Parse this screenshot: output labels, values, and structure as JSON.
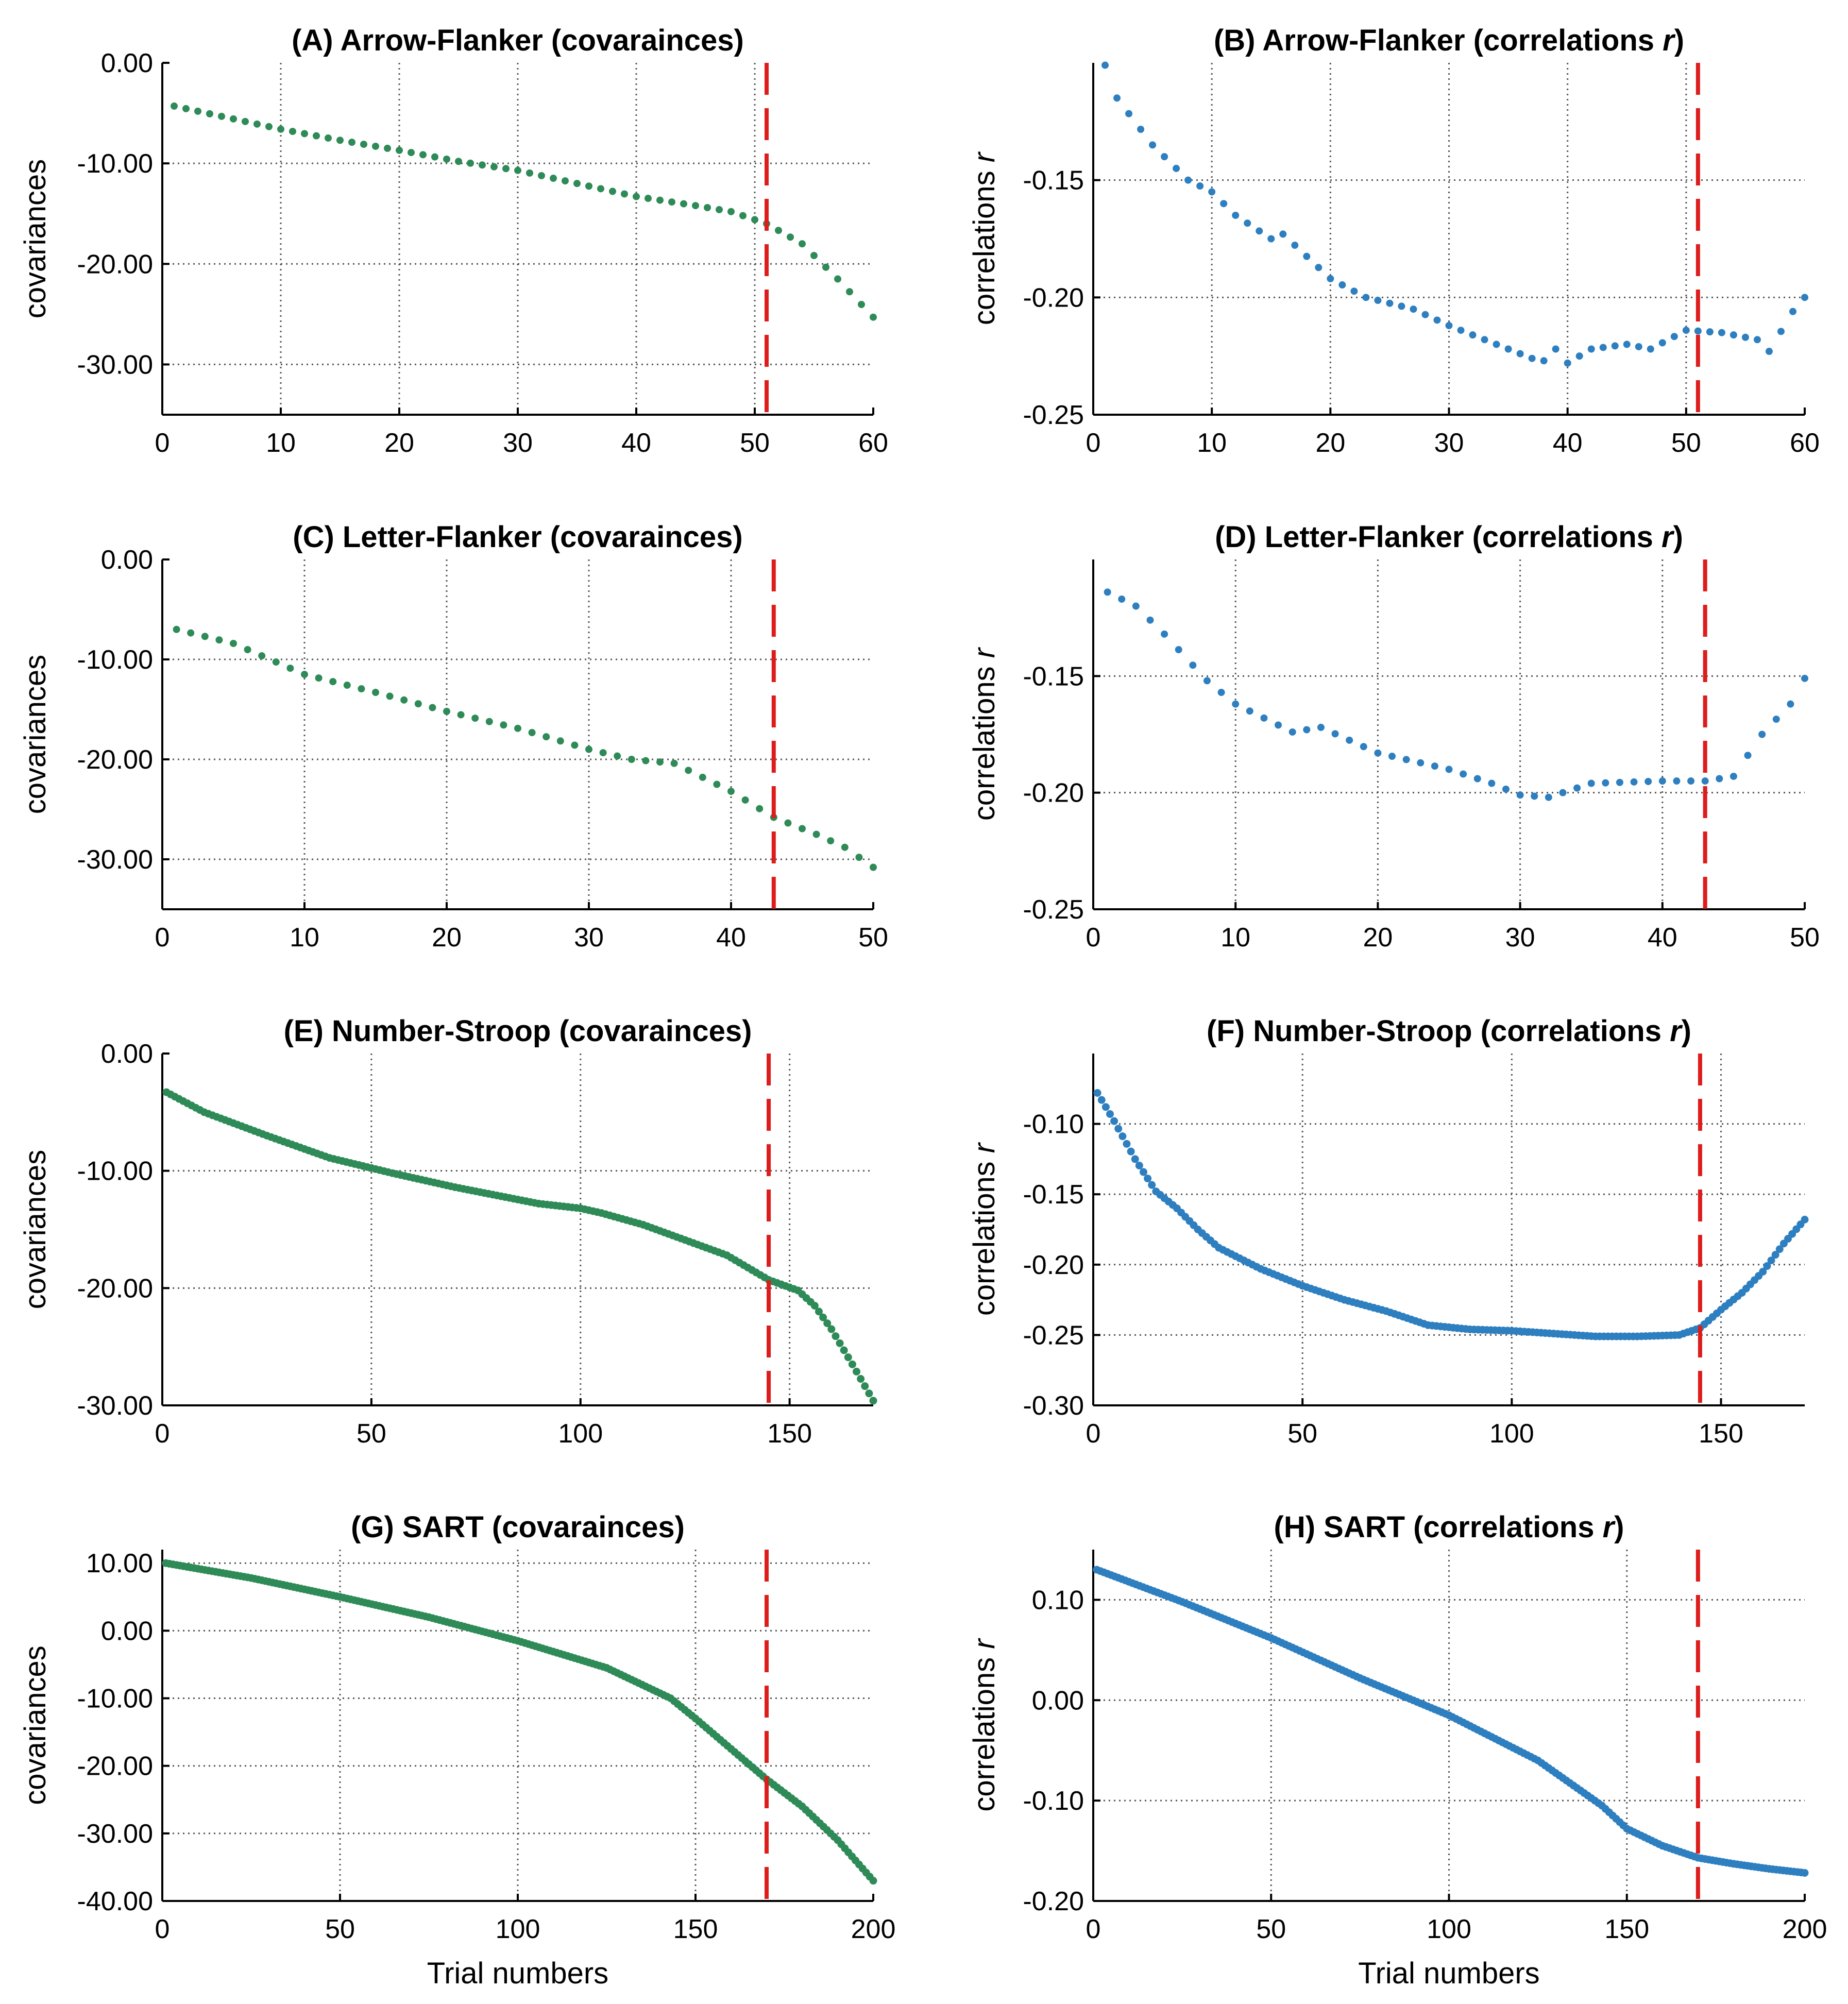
{
  "colors": {
    "cov": "#2e8b57",
    "cor": "#2e7fc0",
    "cutoff": "#dd1c1c",
    "grid": "#555555"
  },
  "chart_data": [
    {
      "id": "A",
      "type": "scatter",
      "measure": "cov",
      "title": "(A) Arrow-Flanker (covaraince​s)",
      "title_plain": "(A) Arrow-Flanker (covaraince​s)",
      "ylabel": "covariances",
      "xlabel": "",
      "xlim": [
        0,
        60
      ],
      "ylim": [
        -35,
        0
      ],
      "xticks": [
        0,
        10,
        20,
        30,
        40,
        50,
        60
      ],
      "yticks": [
        0,
        -10,
        -20,
        -30
      ],
      "ytick_labels": [
        "0.00",
        "-10.00",
        "-20.00",
        "-30.00"
      ],
      "cutoff": 51,
      "n": 60,
      "anchors": [
        [
          1,
          -4.3
        ],
        [
          10,
          -6.6
        ],
        [
          15,
          -7.7
        ],
        [
          20,
          -8.7
        ],
        [
          25,
          -9.8
        ],
        [
          30,
          -10.7
        ],
        [
          35,
          -12.0
        ],
        [
          40,
          -13.3
        ],
        [
          45,
          -14.2
        ],
        [
          48,
          -14.8
        ],
        [
          51,
          -16.0
        ],
        [
          54,
          -18.0
        ],
        [
          57,
          -21.5
        ],
        [
          60,
          -25.3
        ]
      ]
    },
    {
      "id": "B",
      "type": "scatter",
      "measure": "cor",
      "title": "(B) Arrow-Flanker (correlations",
      "ylabel": "correlations",
      "xlabel": "",
      "xlim": [
        0,
        60
      ],
      "ylim": [
        -0.25,
        -0.1
      ],
      "xticks": [
        0,
        10,
        20,
        30,
        40,
        50,
        60
      ],
      "yticks": [
        -0.15,
        -0.2,
        -0.25
      ],
      "ytick_labels": [
        "-0.15",
        "-0.20",
        "-0.25"
      ],
      "cutoff": 51,
      "n": 60,
      "anchors": [
        [
          1,
          -0.101
        ],
        [
          2,
          -0.115
        ],
        [
          5,
          -0.135
        ],
        [
          8,
          -0.15
        ],
        [
          10,
          -0.155
        ],
        [
          12,
          -0.165
        ],
        [
          15,
          -0.175
        ],
        [
          16,
          -0.173
        ],
        [
          20,
          -0.192
        ],
        [
          23,
          -0.2
        ],
        [
          27,
          -0.205
        ],
        [
          30,
          -0.212
        ],
        [
          33,
          -0.218
        ],
        [
          37,
          -0.226
        ],
        [
          38,
          -0.227
        ],
        [
          39,
          -0.222
        ],
        [
          40,
          -0.228
        ],
        [
          42,
          -0.222
        ],
        [
          45,
          -0.22
        ],
        [
          47,
          -0.222
        ],
        [
          50,
          -0.214
        ],
        [
          53,
          -0.215
        ],
        [
          56,
          -0.218
        ],
        [
          57,
          -0.223
        ],
        [
          59,
          -0.206
        ],
        [
          60,
          -0.2
        ]
      ]
    },
    {
      "id": "C",
      "type": "scatter",
      "measure": "cov",
      "title": "(C) Letter-Flanker (covaraince​s)",
      "ylabel": "covariances",
      "xlabel": "",
      "xlim": [
        0,
        50
      ],
      "ylim": [
        -35,
        0
      ],
      "xticks": [
        0,
        10,
        20,
        30,
        40,
        50
      ],
      "yticks": [
        0,
        -10,
        -20,
        -30
      ],
      "ytick_labels": [
        "0.00",
        "-10.00",
        "-20.00",
        "-30.00"
      ],
      "cutoff": 43,
      "n": 50,
      "anchors": [
        [
          1,
          -7.0
        ],
        [
          5,
          -8.4
        ],
        [
          10,
          -11.5
        ],
        [
          15,
          -13.3
        ],
        [
          20,
          -15.2
        ],
        [
          25,
          -16.9
        ],
        [
          30,
          -19.0
        ],
        [
          33,
          -20.0
        ],
        [
          36,
          -20.4
        ],
        [
          40,
          -23.2
        ],
        [
          43,
          -25.8
        ],
        [
          46,
          -27.5
        ],
        [
          48,
          -28.8
        ],
        [
          50,
          -30.8
        ]
      ]
    },
    {
      "id": "D",
      "type": "scatter",
      "measure": "cor",
      "title": "(D) Letter-Flanker (correlations",
      "ylabel": "correlations",
      "xlabel": "",
      "xlim": [
        0,
        50
      ],
      "ylim": [
        -0.25,
        -0.1
      ],
      "xticks": [
        0,
        10,
        20,
        30,
        40,
        50
      ],
      "yticks": [
        -0.15,
        -0.2,
        -0.25
      ],
      "ytick_labels": [
        "-0.15",
        "-0.20",
        "-0.25"
      ],
      "cutoff": 43,
      "n": 50,
      "anchors": [
        [
          1,
          -0.114
        ],
        [
          3,
          -0.12
        ],
        [
          5,
          -0.132
        ],
        [
          8,
          -0.152
        ],
        [
          10,
          -0.162
        ],
        [
          12,
          -0.168
        ],
        [
          14,
          -0.174
        ],
        [
          16,
          -0.172
        ],
        [
          20,
          -0.183
        ],
        [
          25,
          -0.19
        ],
        [
          28,
          -0.196
        ],
        [
          30,
          -0.201
        ],
        [
          32,
          -0.202
        ],
        [
          35,
          -0.196
        ],
        [
          40,
          -0.195
        ],
        [
          43,
          -0.195
        ],
        [
          45,
          -0.193
        ],
        [
          47,
          -0.175
        ],
        [
          49,
          -0.162
        ],
        [
          50,
          -0.151
        ]
      ]
    },
    {
      "id": "E",
      "type": "scatter",
      "measure": "cov",
      "title": "(E) Number-Stroop (covaraince​s)",
      "ylabel": "covariances",
      "xlabel": "",
      "xlim": [
        0,
        170
      ],
      "ylim": [
        -30,
        0
      ],
      "xticks": [
        0,
        50,
        100,
        150
      ],
      "yticks": [
        0,
        -10,
        -20,
        -30
      ],
      "ytick_labels": [
        "0.00",
        "-10.00",
        "-20.00",
        "-30.00"
      ],
      "cutoff": 145,
      "n": 170,
      "anchors": [
        [
          1,
          -3.3
        ],
        [
          10,
          -5.0
        ],
        [
          25,
          -7.0
        ],
        [
          40,
          -8.9
        ],
        [
          55,
          -10.2
        ],
        [
          70,
          -11.4
        ],
        [
          80,
          -12.1
        ],
        [
          90,
          -12.8
        ],
        [
          100,
          -13.2
        ],
        [
          105,
          -13.6
        ],
        [
          115,
          -14.6
        ],
        [
          125,
          -15.9
        ],
        [
          135,
          -17.2
        ],
        [
          145,
          -19.3
        ],
        [
          152,
          -20.2
        ],
        [
          156,
          -21.5
        ],
        [
          160,
          -23.5
        ],
        [
          165,
          -26.5
        ],
        [
          170,
          -29.6
        ]
      ]
    },
    {
      "id": "F",
      "type": "scatter",
      "measure": "cor",
      "title": "(F) Number-Stroop (correlations",
      "ylabel": "correlations",
      "xlabel": "",
      "xlim": [
        0,
        170
      ],
      "ylim": [
        -0.3,
        -0.05
      ],
      "xticks": [
        0,
        50,
        100,
        150
      ],
      "yticks": [
        -0.1,
        -0.15,
        -0.2,
        -0.25,
        -0.3
      ],
      "ytick_labels": [
        "-0.10",
        "-0.15",
        "-0.20",
        "-0.25",
        "-0.30"
      ],
      "cutoff": 145,
      "n": 170,
      "anchors": [
        [
          1,
          -0.078
        ],
        [
          5,
          -0.098
        ],
        [
          10,
          -0.125
        ],
        [
          15,
          -0.148
        ],
        [
          20,
          -0.16
        ],
        [
          25,
          -0.175
        ],
        [
          30,
          -0.188
        ],
        [
          40,
          -0.203
        ],
        [
          50,
          -0.215
        ],
        [
          60,
          -0.225
        ],
        [
          70,
          -0.233
        ],
        [
          80,
          -0.243
        ],
        [
          90,
          -0.246
        ],
        [
          100,
          -0.247
        ],
        [
          110,
          -0.249
        ],
        [
          120,
          -0.251
        ],
        [
          130,
          -0.251
        ],
        [
          140,
          -0.25
        ],
        [
          145,
          -0.245
        ],
        [
          150,
          -0.232
        ],
        [
          155,
          -0.22
        ],
        [
          160,
          -0.205
        ],
        [
          165,
          -0.185
        ],
        [
          170,
          -0.168
        ]
      ]
    },
    {
      "id": "G",
      "type": "scatter",
      "measure": "cov",
      "title": "(G) SART (covaraince​s)",
      "ylabel": "covariances",
      "xlabel": "Trial numbers",
      "xlim": [
        0,
        200
      ],
      "ylim": [
        -40,
        12
      ],
      "xticks": [
        0,
        50,
        100,
        150,
        200
      ],
      "yticks": [
        10,
        0,
        -10,
        -20,
        -30,
        -40
      ],
      "ytick_labels": [
        "10.00",
        "0.00",
        "-10.00",
        "-20.00",
        "-30.00",
        "-40.00"
      ],
      "cutoff": 170,
      "n": 200,
      "anchors": [
        [
          1,
          10.0
        ],
        [
          25,
          7.8
        ],
        [
          50,
          5.0
        ],
        [
          75,
          2.0
        ],
        [
          100,
          -1.5
        ],
        [
          125,
          -5.5
        ],
        [
          143,
          -10.0
        ],
        [
          150,
          -13.0
        ],
        [
          160,
          -17.5
        ],
        [
          170,
          -22.0
        ],
        [
          180,
          -26.0
        ],
        [
          190,
          -31.0
        ],
        [
          200,
          -37.0
        ]
      ]
    },
    {
      "id": "H",
      "type": "scatter",
      "measure": "cor",
      "title": "(H) SART (correlations",
      "ylabel": "correlations",
      "xlabel": "Trial numbers",
      "xlim": [
        0,
        200
      ],
      "ylim": [
        -0.2,
        0.15
      ],
      "xticks": [
        0,
        50,
        100,
        150,
        200
      ],
      "yticks": [
        0.1,
        0,
        -0.1,
        -0.2
      ],
      "ytick_labels": [
        "0.10",
        "0.00",
        "-0.10",
        "-0.20"
      ],
      "cutoff": 170,
      "n": 200,
      "anchors": [
        [
          1,
          0.13
        ],
        [
          25,
          0.098
        ],
        [
          50,
          0.062
        ],
        [
          75,
          0.022
        ],
        [
          100,
          -0.015
        ],
        [
          125,
          -0.06
        ],
        [
          143,
          -0.105
        ],
        [
          150,
          -0.128
        ],
        [
          160,
          -0.145
        ],
        [
          170,
          -0.157
        ],
        [
          180,
          -0.163
        ],
        [
          190,
          -0.168
        ],
        [
          200,
          -0.172
        ]
      ]
    }
  ]
}
